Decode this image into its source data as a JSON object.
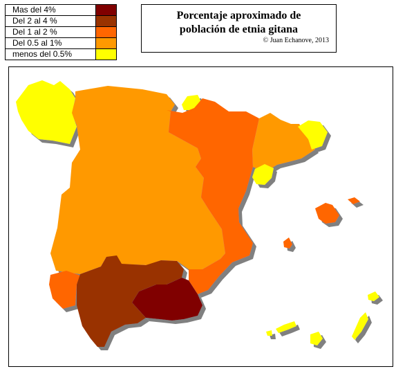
{
  "title": {
    "line1": "Porcentaje aproximado de",
    "line2": "población de etnia gitana",
    "credit": "© Juan Echanove, 2013"
  },
  "legend": [
    {
      "label": "Mas del 4%",
      "color": "#800000"
    },
    {
      "label": "Del 2 al 4 %",
      "color": "#993300"
    },
    {
      "label": "Del 1 al 2 %",
      "color": "#ff6600"
    },
    {
      "label": "Del 0.5 al 1%",
      "color": "#ff9900"
    },
    {
      "label": "menos del 0.5%",
      "color": "#ffff00"
    }
  ],
  "map": {
    "shadow_color": "#808080",
    "regions": [
      {
        "name": "galicia",
        "class": "menos del 0.5%",
        "color": "#ffff00"
      },
      {
        "name": "cantabria",
        "class": "menos del 0.5%",
        "color": "#ffff00"
      },
      {
        "name": "castilla-y-leon-castilla-la-mancha-extremadura-madrid-asturias",
        "class": "Del 0.5 al 1%",
        "color": "#ff9900"
      },
      {
        "name": "navarra-aragon-valencia",
        "class": "Del 1 al 2 %",
        "color": "#ff6600"
      },
      {
        "name": "cataluna",
        "class": "Del 0.5 al 1%",
        "color": "#ff9900"
      },
      {
        "name": "girona",
        "class": "menos del 0.5%",
        "color": "#ffff00"
      },
      {
        "name": "tarragona",
        "class": "menos del 0.5%",
        "color": "#ffff00"
      },
      {
        "name": "murcia",
        "class": "Del 1 al 2 %",
        "color": "#ff6600"
      },
      {
        "name": "huelva",
        "class": "Del 1 al 2 %",
        "color": "#ff6600"
      },
      {
        "name": "andalucia-occidental",
        "class": "Del 2 al 4 %",
        "color": "#993300"
      },
      {
        "name": "granada-almeria",
        "class": "Mas del 4%",
        "color": "#800000"
      },
      {
        "name": "baleares",
        "class": "Del 1 al 2 %",
        "color": "#ff6600"
      },
      {
        "name": "canarias",
        "class": "menos del 0.5%",
        "color": "#ffff00"
      }
    ]
  }
}
